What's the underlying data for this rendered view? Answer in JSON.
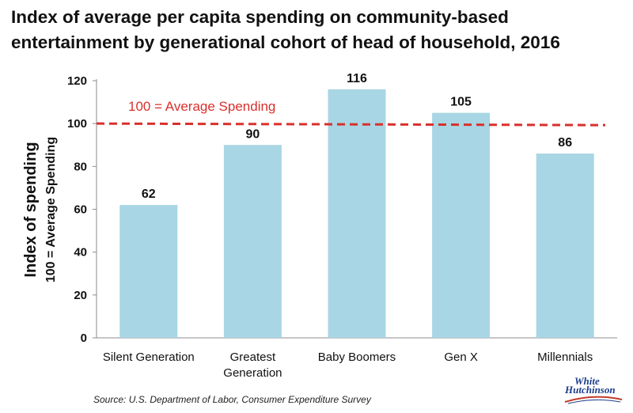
{
  "chart_data": {
    "type": "bar",
    "title_lines": [
      "Index of average per capita spending on community-based",
      "entertainment by generational cohort of head of household, 2016"
    ],
    "ylabel": "Index of spending",
    "ylabel_sub": "100 = Average Spending",
    "xlabel": "",
    "categories": [
      [
        "Silent Generation"
      ],
      [
        "Greatest",
        "Generation"
      ],
      [
        "Baby Boomers"
      ],
      [
        "Gen X"
      ],
      [
        "Millennials"
      ]
    ],
    "values": [
      62,
      90,
      116,
      105,
      86
    ],
    "ylim": [
      0,
      120
    ],
    "yticks": [
      0,
      20,
      40,
      60,
      80,
      100,
      120
    ],
    "reference_line": {
      "value": 100,
      "label": "100 = Average Spending",
      "color": "#d9302c",
      "style": "dashed"
    },
    "bar_color": "#a8d6e4",
    "grid": false,
    "legend": "none"
  },
  "source": "Source: U.S. Department of Labor, Consumer Expenditure Survey",
  "logo": {
    "line1": "White",
    "line2": "Hutchinson"
  }
}
